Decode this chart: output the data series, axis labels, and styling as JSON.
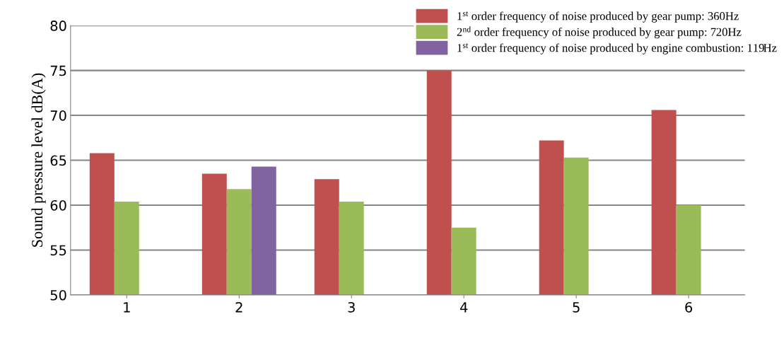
{
  "chart_data": {
    "type": "bar",
    "categories": [
      "1",
      "2",
      "3",
      "4",
      "5",
      "6"
    ],
    "series": [
      {
        "name": "1$^{st}$ order frequency of noise produced by gear pump: 360Hz",
        "color": "#c0504d",
        "values": [
          65.8,
          63.5,
          62.9,
          75.0,
          67.2,
          70.6
        ]
      },
      {
        "name": "2$^{nd}$ order frequency of noise produced by gear pump: 720Hz",
        "color": "#9bbb59",
        "values": [
          60.4,
          61.8,
          60.4,
          57.5,
          65.3,
          60.0
        ]
      },
      {
        "name": "1$^{st}$ order frequency of noise produced by engine combustion: 119Hz",
        "color": "#8064a2",
        "values": [
          null,
          64.3,
          null,
          null,
          null,
          null
        ]
      }
    ],
    "ylabel": "Sound pressure level dB(A)",
    "ylim": [
      50,
      80
    ],
    "yticks": [
      50,
      55,
      60,
      65,
      70,
      75,
      80
    ],
    "grid": "y",
    "legend": "top right"
  }
}
